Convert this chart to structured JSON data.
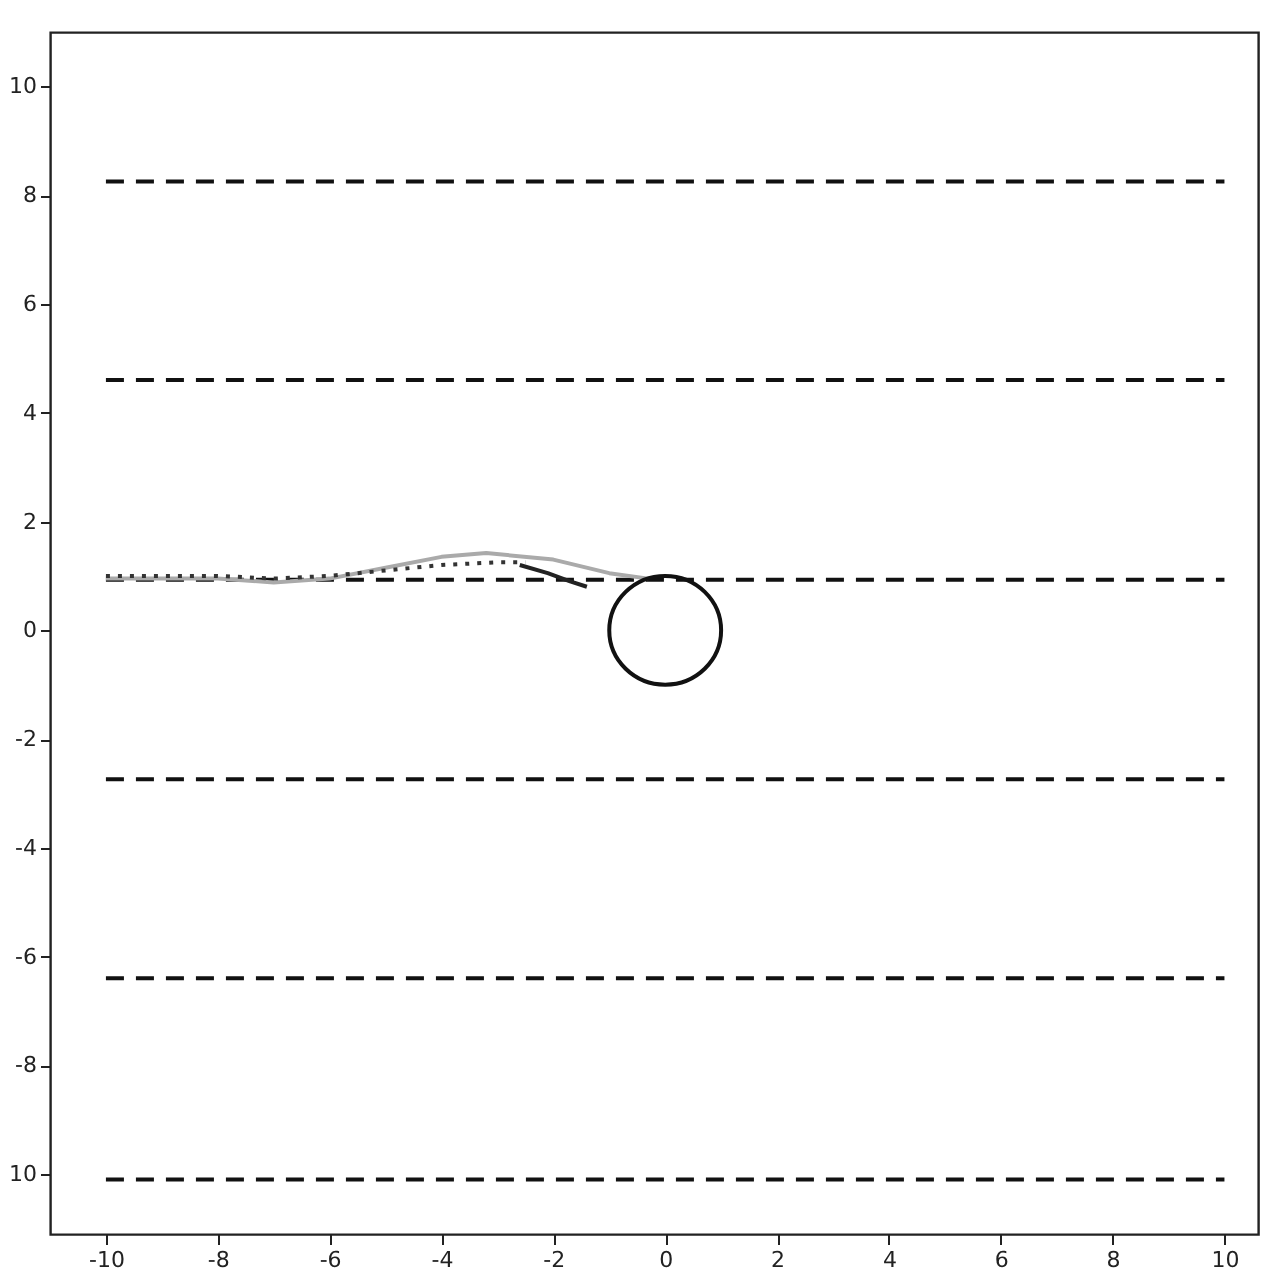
{
  "chart_data": {
    "type": "line",
    "xlim": [
      -11,
      10.6
    ],
    "ylim": [
      -11.1,
      11
    ],
    "xticks": [
      -10,
      -8,
      -6,
      -4,
      -2,
      0,
      2,
      4,
      6,
      8,
      10
    ],
    "yticks": [
      {
        "value": -10,
        "label": "10"
      },
      -8,
      -6,
      -4,
      -2,
      0,
      2,
      4,
      6,
      8,
      10
    ],
    "grid": false,
    "marker": "none",
    "series": [
      {
        "color": "#111111",
        "line_style": "dashed",
        "x": [
          -10,
          10
        ],
        "values": [
          8.25,
          8.25
        ]
      },
      {
        "color": "#111111",
        "line_style": "dashed",
        "x": [
          -10,
          10
        ],
        "values": [
          4.6,
          4.6
        ]
      },
      {
        "color": "#111111",
        "line_style": "dashed",
        "x": [
          -10,
          10
        ],
        "values": [
          0.93,
          0.93
        ]
      },
      {
        "color": "#111111",
        "line_style": "dashed",
        "x": [
          -10,
          10
        ],
        "values": [
          -2.74,
          -2.74
        ]
      },
      {
        "color": "#111111",
        "line_style": "dashed",
        "x": [
          -10,
          10
        ],
        "values": [
          -6.4,
          -6.4
        ]
      },
      {
        "color": "#111111",
        "line_style": "dashed",
        "x": [
          -10,
          10
        ],
        "values": [
          -10.1,
          -10.1
        ]
      },
      {
        "color": "#aaaaaa",
        "line_style": "solid",
        "x": [
          -10,
          -8,
          -7,
          -6,
          -5,
          -4,
          -3.2,
          -2,
          -1,
          -0.3
        ],
        "values": [
          0.95,
          0.95,
          0.88,
          0.95,
          1.15,
          1.35,
          1.42,
          1.3,
          1.05,
          0.95
        ]
      },
      {
        "color": "#333333",
        "line_style": "dotted",
        "x": [
          -10,
          -8,
          -7,
          -6,
          -5,
          -4,
          -3,
          -2.5
        ],
        "values": [
          1.0,
          1.0,
          0.95,
          1.0,
          1.1,
          1.2,
          1.25,
          1.25
        ]
      },
      {
        "color": "#222222",
        "line_style": "solid",
        "x": [
          -2.6,
          -2.1,
          -1.7,
          -1.4
        ],
        "values": [
          1.2,
          1.05,
          0.9,
          0.8
        ]
      }
    ]
  }
}
